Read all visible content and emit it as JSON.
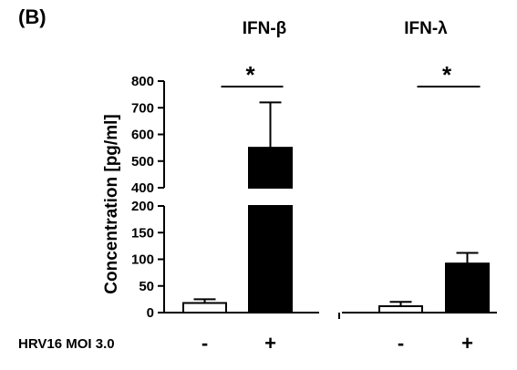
{
  "chart_data": {
    "type": "bar",
    "panel_label": "(B)",
    "ylabel": "Concentration [pg/ml]",
    "yaxis": {
      "segments": [
        {
          "range": [
            0,
            200
          ],
          "ticks": [
            0,
            50,
            100,
            150,
            200
          ]
        },
        {
          "range": [
            400,
            800
          ],
          "ticks": [
            400,
            500,
            600,
            700,
            800
          ]
        }
      ],
      "break_between": [
        200,
        400
      ]
    },
    "row_label": "HRV16 MOI 3.0",
    "groups": [
      {
        "title": "IFN-β",
        "significance": "*",
        "bars": [
          {
            "condition": "-",
            "value": 18,
            "error": 7,
            "fill": "#ffffff"
          },
          {
            "condition": "+",
            "value": 550,
            "error": 170,
            "fill": "#000000"
          }
        ]
      },
      {
        "title": "IFN-λ",
        "significance": "*",
        "bars": [
          {
            "condition": "-",
            "value": 12,
            "error": 8,
            "fill": "#ffffff"
          },
          {
            "condition": "+",
            "value": 92,
            "error": 20,
            "fill": "#000000"
          }
        ]
      }
    ]
  }
}
